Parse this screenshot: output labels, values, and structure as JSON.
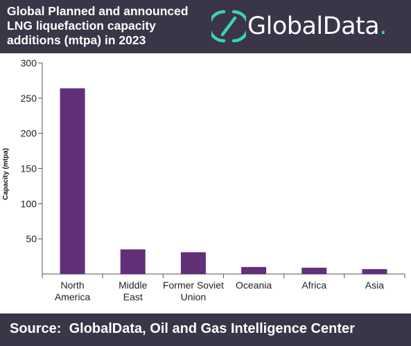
{
  "header": {
    "title_lines": [
      "Global Planned and announced",
      "LNG liquefaction capacity",
      "additions (mtpa) in 2023"
    ],
    "brand": "GlobalData",
    "brand_suffix": "."
  },
  "footer": {
    "source": "Source:  GlobalData, Oil and Gas Intelligence Center"
  },
  "colors": {
    "header_bg": "#3b3548",
    "bar": "#622f79",
    "brand_accent": "#3cd3b0",
    "axis": "#555555"
  },
  "chart_data": {
    "type": "bar",
    "categories": [
      [
        "North",
        "America"
      ],
      [
        "Middle",
        "East"
      ],
      [
        "Former Soviet",
        "Union"
      ],
      [
        "Oceania"
      ],
      [
        "Africa"
      ],
      [
        "Asia"
      ]
    ],
    "values": [
      264,
      35,
      31,
      10,
      9,
      7
    ],
    "ylabel": "Capacity (mtpa)",
    "ylim": [
      0,
      300
    ],
    "yticks": [
      50,
      100,
      150,
      200,
      250,
      300
    ],
    "grid": false,
    "legend": "none"
  }
}
